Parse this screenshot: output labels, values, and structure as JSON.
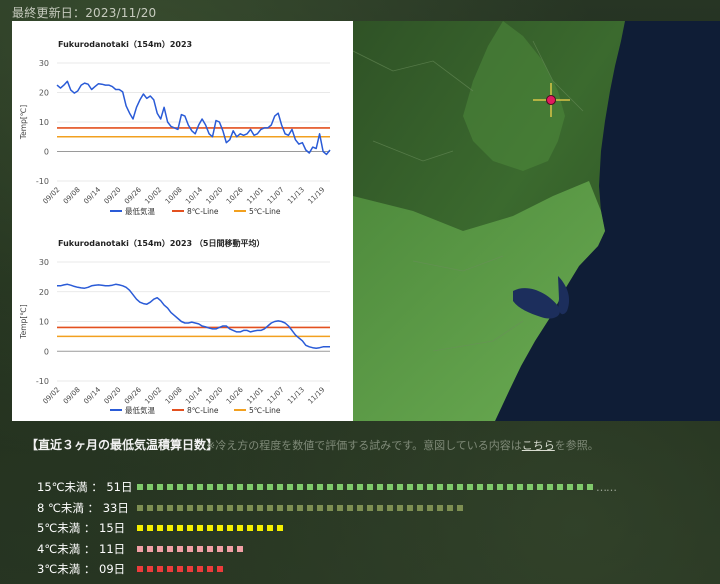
{
  "header": {
    "updated": "最終更新日：2023/11/20"
  },
  "charts": [
    {
      "title": "Fukurodanotaki（154m）2023",
      "ylabel": "Temp[℃]",
      "yticks": [
        "30",
        "20",
        "10",
        "0",
        "-10"
      ],
      "xticks": [
        "09/02",
        "09/08",
        "09/14",
        "09/20",
        "09/26",
        "10/02",
        "10/08",
        "10/14",
        "10/20",
        "10/26",
        "11/01",
        "11/07",
        "11/13",
        "11/19"
      ],
      "legend": [
        "最低気温",
        "8℃-Line",
        "5℃-Line"
      ]
    },
    {
      "title": "Fukurodanotaki（154m）2023 （5日間移動平均）",
      "ylabel": "Temp[℃]",
      "yticks": [
        "30",
        "20",
        "10",
        "0",
        "-10"
      ],
      "xticks": [
        "09/02",
        "09/08",
        "09/14",
        "09/20",
        "09/26",
        "10/02",
        "10/08",
        "10/14",
        "10/20",
        "10/26",
        "11/01",
        "11/07",
        "11/13",
        "11/19"
      ],
      "legend": [
        "最低気温",
        "8℃-Line",
        "5℃-Line"
      ]
    }
  ],
  "chart_data": [
    {
      "type": "line",
      "title": "Fukurodanotaki（154m）2023",
      "ylabel": "Temp[℃]",
      "ylim": [
        -10,
        30
      ],
      "grid": true,
      "legend_position": "bottom",
      "x_start": "09/02",
      "x_end": "11/20",
      "series": [
        {
          "name": "最低気温",
          "color": "#2a5bd7",
          "values": [
            22.5,
            21.5,
            22.5,
            23.8,
            20.8,
            19.8,
            20.5,
            22.5,
            23.2,
            22.8,
            21,
            22,
            23,
            22.8,
            22.5,
            22.5,
            22,
            21,
            21,
            20.2,
            15.5,
            13,
            11,
            15,
            17.5,
            19.5,
            18,
            18.8,
            17.5,
            13,
            11,
            15,
            10,
            8.5,
            8,
            7.5,
            12.5,
            12,
            9,
            7,
            6,
            9,
            11,
            9,
            6,
            5,
            10.5,
            10,
            7,
            3,
            4,
            7,
            5,
            6,
            5.5,
            6,
            7.5,
            5.5,
            6,
            7.5,
            8,
            8,
            9,
            12,
            13,
            9,
            6,
            5.5,
            7.5,
            4,
            2.5,
            3,
            0.5,
            -0.5,
            1.5,
            1,
            6,
            0,
            -1,
            0.5
          ]
        },
        {
          "name": "8℃-Line",
          "color": "#e3501f",
          "values": [
            8
          ]
        },
        {
          "name": "5℃-Line",
          "color": "#f2a01f",
          "values": [
            5
          ]
        }
      ]
    },
    {
      "type": "line",
      "title": "Fukurodanotaki（154m）2023 （5日間移動平均）",
      "ylabel": "Temp[℃]",
      "ylim": [
        -10,
        30
      ],
      "grid": true,
      "legend_position": "bottom",
      "x_start": "09/02",
      "x_end": "11/20",
      "series": [
        {
          "name": "最低気温",
          "color": "#2a5bd7",
          "values": [
            22,
            22,
            22.3,
            22.5,
            22.2,
            21.8,
            21.5,
            21.3,
            21.2,
            21.5,
            22,
            22.2,
            22.3,
            22.2,
            22,
            22,
            22.2,
            22.5,
            22.3,
            22,
            21.5,
            20.5,
            19,
            17.5,
            16.5,
            16,
            15.8,
            16.5,
            17.5,
            18,
            17,
            15.5,
            14.5,
            13,
            12,
            11,
            10,
            9.5,
            9.5,
            9.8,
            9.5,
            9.2,
            8.5,
            8.2,
            7.8,
            7.5,
            7.5,
            8,
            8.5,
            8.5,
            7.5,
            7,
            6.5,
            6.5,
            7,
            7,
            6.5,
            6.8,
            7,
            7,
            7.5,
            8.5,
            9.5,
            10,
            10.2,
            10,
            9.5,
            8.5,
            7,
            5.5,
            4.5,
            3.5,
            2,
            1.5,
            1.2,
            1,
            1.2,
            1.5,
            1.5,
            1.5
          ]
        },
        {
          "name": "8℃-Line",
          "color": "#e3501f",
          "values": [
            8
          ]
        },
        {
          "name": "5℃-Line",
          "color": "#f2a01f",
          "values": [
            5
          ]
        }
      ]
    }
  ],
  "section": {
    "title": "【直近３ヶ月の最低気温積算日数】",
    "note_before": "※冷え方の程度を数値で評価する試みです。意図している内容は",
    "note_link": "こちら",
    "note_after": "を参照。"
  },
  "rows": [
    {
      "label": "15℃未満 ： 51日",
      "count": 46,
      "color": "#7fc96b",
      "trail": "……"
    },
    {
      "label": "8 ℃未満 ： 33日",
      "count": 33,
      "color": "#7e8f52",
      "trail": ""
    },
    {
      "label": "5℃未満 ： 15日",
      "count": 15,
      "color": "#f5f000",
      "trail": ""
    },
    {
      "label": "4℃未満 ： 11日",
      "count": 11,
      "color": "#f2a0a6",
      "trail": ""
    },
    {
      "label": "3℃未満 ： 09日",
      "count": 9,
      "color": "#ee3b3b",
      "trail": ""
    }
  ],
  "map": {
    "marker_icon": "crosshair-marker-icon",
    "colors": {
      "sea": "#0f1d36",
      "land": "#3c6a2e",
      "plain": "#5fa04b",
      "lake": "#1c2e5c"
    }
  }
}
